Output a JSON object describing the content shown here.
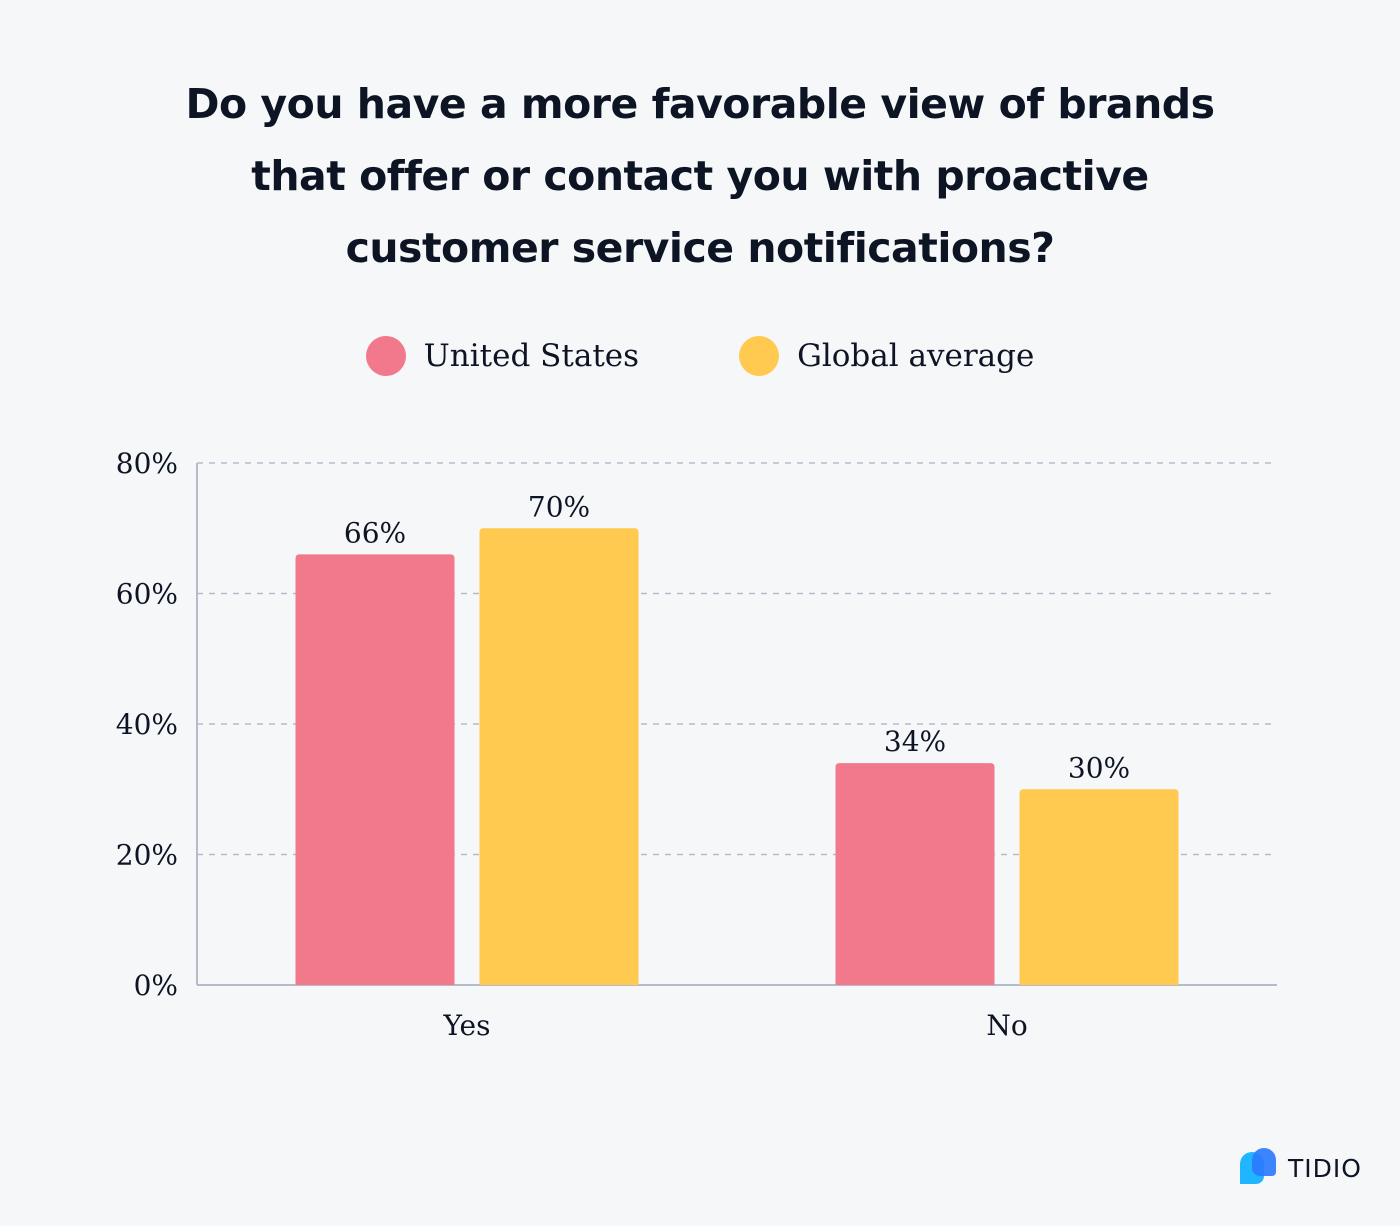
{
  "chart_data": {
    "type": "bar",
    "title": "Do you have a more favorable view of brands that offer or contact you with proactive customer service notifications?",
    "title_lines": [
      "Do you have a more favorable view of brands",
      "that offer or contact you with proactive",
      "customer service notifications?"
    ],
    "categories": [
      "Yes",
      "No"
    ],
    "series": [
      {
        "name": "United States",
        "values": [
          66,
          34
        ],
        "labels": [
          "66%",
          "34%"
        ],
        "color": "#f2788b"
      },
      {
        "name": "Global average",
        "values": [
          70,
          30
        ],
        "labels": [
          "70%",
          "30%"
        ],
        "color": "#ffca4f"
      }
    ],
    "ylim": [
      0,
      80
    ],
    "yticks": [
      0,
      20,
      40,
      60,
      80
    ],
    "ytick_labels": [
      "0%",
      "20%",
      "40%",
      "60%",
      "80%"
    ],
    "xlabel": "",
    "ylabel": "",
    "grid": true,
    "legend": "top-center"
  },
  "brand": {
    "name": "TIDIO",
    "colors": [
      "#2b7bff",
      "#1fb6ff"
    ]
  }
}
